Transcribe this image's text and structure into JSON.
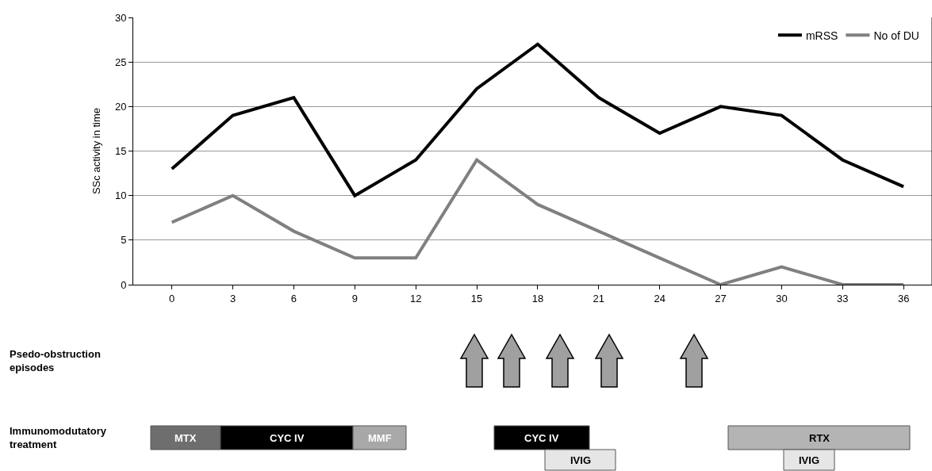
{
  "chart_data": {
    "type": "line",
    "ylabel": "SSc activity in time",
    "x": [
      0,
      3,
      6,
      9,
      12,
      15,
      18,
      21,
      24,
      27,
      30,
      33,
      36
    ],
    "xlim": [
      -1.9,
      37.4
    ],
    "xticks": [
      0,
      3,
      6,
      9,
      12,
      15,
      18,
      21,
      24,
      27,
      30,
      33,
      36
    ],
    "ylim": [
      0,
      30
    ],
    "yticks": [
      0,
      5,
      10,
      15,
      20,
      25,
      30
    ],
    "series": [
      {
        "name": "mRSS",
        "color": "#000000",
        "values": [
          13,
          19,
          21,
          10,
          14,
          22,
          27,
          21,
          17,
          20,
          19,
          14,
          11
        ]
      },
      {
        "name": "No of DU",
        "color": "#808080",
        "values": [
          7,
          10,
          6,
          3,
          3,
          14,
          9,
          6,
          3,
          0,
          2,
          0,
          0
        ]
      }
    ],
    "grid": "y",
    "legend": "top right",
    "marker": "none",
    "line_style": "solid",
    "annotations": [
      "Psedo-obstruction episodes",
      "Immunomodutatory treatment",
      "MTX",
      "CYC IV",
      "MMF",
      "CYC IV",
      "IVIG",
      "RTX",
      "IVIG"
    ]
  }
}
